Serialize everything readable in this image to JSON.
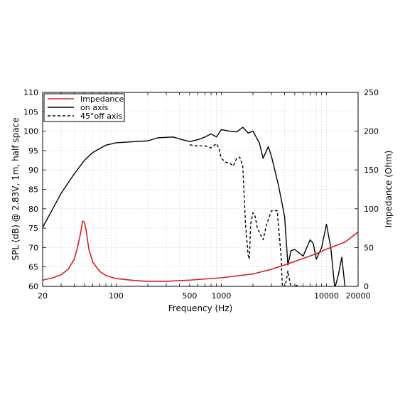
{
  "chart_data": {
    "type": "line",
    "xlabel": "Frequency (Hz)",
    "ylabel": "SPL (dB) @ 2.83V, 1m, half space",
    "y2label": "Impedance (Ohm)",
    "x_scale": "log",
    "xlim": [
      20,
      20000
    ],
    "ylim": [
      60,
      110
    ],
    "y2lim": [
      0,
      250
    ],
    "x_ticks": [
      20,
      100,
      500,
      1000,
      10000,
      20000
    ],
    "x_tick_labels": [
      "20",
      "100",
      "500",
      "1000",
      "10000",
      "20000"
    ],
    "y_ticks": [
      60,
      65,
      70,
      75,
      80,
      85,
      90,
      95,
      100,
      105,
      110
    ],
    "y_tick_labels": [
      "60",
      "65",
      "70",
      "75",
      "80",
      "85",
      "90",
      "95",
      "100",
      "105",
      "110"
    ],
    "y2_ticks": [
      0,
      50,
      100,
      150,
      200,
      250
    ],
    "y2_tick_labels": [
      "0",
      "50",
      "100",
      "150",
      "200",
      "250"
    ],
    "grid": true,
    "legend_position": "top-left",
    "colors": {
      "impedance": "#d62020",
      "on_axis": "#000000",
      "off_axis": "#000000"
    },
    "series": [
      {
        "name": "Impedance",
        "axis": "right",
        "style": "solid",
        "color": "#d62020",
        "x": [
          20,
          25,
          30,
          35,
          40,
          43,
          46,
          48,
          50,
          52,
          55,
          60,
          70,
          80,
          100,
          150,
          200,
          300,
          500,
          1000,
          2000,
          3000,
          5000,
          8000,
          10000,
          15000,
          20000
        ],
        "y": [
          8,
          11,
          15,
          22,
          35,
          51,
          69,
          84,
          83,
          71,
          48,
          31,
          19,
          14,
          10,
          7.5,
          6.5,
          6.5,
          8,
          11,
          16,
          22,
          32,
          42,
          48,
          57,
          70
        ]
      },
      {
        "name": "on axis",
        "axis": "left",
        "style": "solid",
        "color": "#000000",
        "x": [
          20,
          25,
          30,
          40,
          50,
          60,
          80,
          100,
          150,
          200,
          250,
          300,
          350,
          400,
          500,
          600,
          700,
          800,
          900,
          1000,
          1200,
          1400,
          1600,
          1800,
          2000,
          2300,
          2500,
          2800,
          3000,
          3500,
          4000,
          4300,
          4600,
          5000,
          6000,
          7000,
          7500,
          8000,
          9000,
          10000,
          11000,
          12000,
          13000,
          14000,
          15000,
          17000,
          18000,
          19000,
          20000
        ],
        "y": [
          75.2,
          80,
          84,
          89,
          92.5,
          94.5,
          96.4,
          97,
          97.3,
          97.5,
          98.3,
          98.4,
          98.5,
          98,
          97.3,
          97.8,
          98.5,
          99.3,
          98.5,
          100.4,
          100,
          99.8,
          101,
          99.5,
          100,
          97,
          93,
          96,
          93.5,
          86,
          78,
          65.5,
          69.2,
          69.5,
          67.8,
          72,
          71,
          67,
          70,
          76,
          70,
          59.5,
          63,
          67.5,
          60,
          59.5,
          59.5,
          59.8,
          60
        ]
      },
      {
        "name": "45°off axis",
        "axis": "left",
        "style": "dashed",
        "color": "#000000",
        "x": [
          500,
          550,
          600,
          700,
          800,
          900,
          950,
          1000,
          1100,
          1200,
          1300,
          1400,
          1500,
          1600,
          1700,
          1800,
          1850,
          1900,
          2000,
          2100,
          2200,
          2500,
          2700,
          3000,
          3400,
          3700,
          3800,
          4000,
          4300,
          4600,
          5000,
          5500
        ],
        "y": [
          96.5,
          96.3,
          96.2,
          96.2,
          95.7,
          96.8,
          95.5,
          93,
          92,
          91.8,
          91,
          93,
          93.3,
          91,
          76,
          68,
          67,
          76,
          79,
          78,
          75,
          72,
          76,
          79.5,
          79.5,
          68,
          60.5,
          59,
          64,
          59.5,
          60,
          60.5
        ]
      }
    ]
  }
}
